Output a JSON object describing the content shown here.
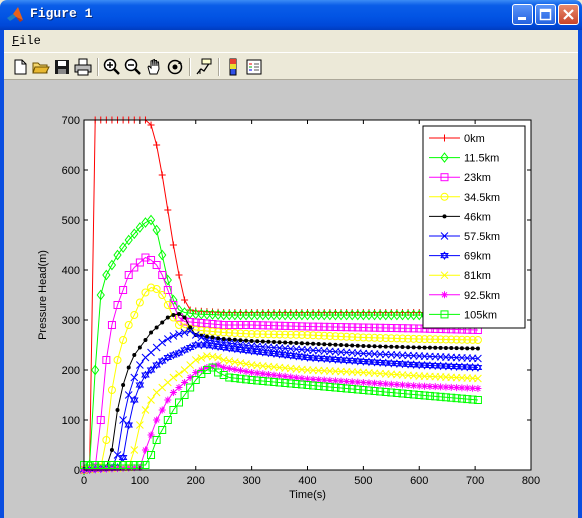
{
  "window": {
    "title": "Figure 1"
  },
  "menu": {
    "file_label": "File",
    "file_accel": "F",
    "file_rest": "ile"
  },
  "toolbar": {
    "buttons": [
      "new-figure",
      "open-file",
      "save",
      "print",
      "zoom-in",
      "zoom-out",
      "pan",
      "rotate-3d",
      "data-cursor",
      "colorbar",
      "legend"
    ]
  },
  "colors": {
    "titlebar": "#0254e4",
    "window_bg": "#ece9d8",
    "figure_bg": "#c8c8c8"
  },
  "chart_data": {
    "type": "line",
    "title": "",
    "xlabel": "Time(s)",
    "ylabel": "Pressure Head(m)",
    "xlim": [
      0,
      800
    ],
    "ylim": [
      0,
      700
    ],
    "xticks": [
      "0",
      "100",
      "200",
      "300",
      "400",
      "500",
      "600",
      "700",
      "800"
    ],
    "yticks": [
      "0",
      "100",
      "200",
      "300",
      "400",
      "500",
      "600",
      "700"
    ],
    "grid": false,
    "legend_position": "top-right",
    "series": [
      {
        "name": "0km",
        "color": "#ff0000",
        "marker": "+",
        "points": [
          [
            0,
            0
          ],
          [
            10,
            5
          ],
          [
            20,
            700
          ],
          [
            40,
            700
          ],
          [
            60,
            700
          ],
          [
            80,
            700
          ],
          [
            100,
            700
          ],
          [
            110,
            700
          ],
          [
            120,
            690
          ],
          [
            130,
            650
          ],
          [
            140,
            590
          ],
          [
            150,
            520
          ],
          [
            160,
            450
          ],
          [
            170,
            390
          ],
          [
            180,
            340
          ],
          [
            190,
            320
          ],
          [
            200,
            318
          ],
          [
            250,
            315
          ],
          [
            300,
            315
          ],
          [
            400,
            315
          ],
          [
            500,
            315
          ],
          [
            600,
            315
          ],
          [
            705,
            315
          ]
        ]
      },
      {
        "name": "11.5km",
        "color": "#00ff00",
        "marker": "diamond",
        "points": [
          [
            0,
            0
          ],
          [
            10,
            10
          ],
          [
            20,
            200
          ],
          [
            30,
            350
          ],
          [
            40,
            390
          ],
          [
            60,
            430
          ],
          [
            80,
            460
          ],
          [
            100,
            485
          ],
          [
            110,
            495
          ],
          [
            120,
            500
          ],
          [
            130,
            480
          ],
          [
            140,
            430
          ],
          [
            150,
            380
          ],
          [
            160,
            340
          ],
          [
            170,
            320
          ],
          [
            180,
            315
          ],
          [
            200,
            312
          ],
          [
            250,
            310
          ],
          [
            300,
            310
          ],
          [
            400,
            310
          ],
          [
            500,
            310
          ],
          [
            600,
            310
          ],
          [
            705,
            310
          ]
        ]
      },
      {
        "name": "23km",
        "color": "#ff00ff",
        "marker": "square",
        "points": [
          [
            0,
            0
          ],
          [
            20,
            5
          ],
          [
            30,
            100
          ],
          [
            40,
            220
          ],
          [
            50,
            290
          ],
          [
            60,
            330
          ],
          [
            70,
            360
          ],
          [
            80,
            390
          ],
          [
            90,
            405
          ],
          [
            100,
            415
          ],
          [
            110,
            425
          ],
          [
            120,
            420
          ],
          [
            130,
            410
          ],
          [
            140,
            390
          ],
          [
            150,
            360
          ],
          [
            160,
            330
          ],
          [
            170,
            305
          ],
          [
            180,
            297
          ],
          [
            200,
            295
          ],
          [
            250,
            290
          ],
          [
            300,
            290
          ],
          [
            400,
            287
          ],
          [
            500,
            285
          ],
          [
            600,
            283
          ],
          [
            705,
            280
          ]
        ]
      },
      {
        "name": "34.5km",
        "color": "#ffff00",
        "marker": "circle",
        "points": [
          [
            0,
            0
          ],
          [
            30,
            5
          ],
          [
            40,
            60
          ],
          [
            50,
            160
          ],
          [
            60,
            220
          ],
          [
            70,
            260
          ],
          [
            80,
            290
          ],
          [
            90,
            310
          ],
          [
            100,
            335
          ],
          [
            110,
            355
          ],
          [
            120,
            365
          ],
          [
            130,
            362
          ],
          [
            140,
            350
          ],
          [
            150,
            330
          ],
          [
            160,
            305
          ],
          [
            170,
            290
          ],
          [
            180,
            285
          ],
          [
            200,
            280
          ],
          [
            250,
            275
          ],
          [
            300,
            272
          ],
          [
            400,
            270
          ],
          [
            500,
            265
          ],
          [
            600,
            262
          ],
          [
            705,
            260
          ]
        ]
      },
      {
        "name": "46km",
        "color": "#000000",
        "marker": "dot",
        "points": [
          [
            0,
            0
          ],
          [
            40,
            5
          ],
          [
            50,
            40
          ],
          [
            60,
            120
          ],
          [
            70,
            170
          ],
          [
            80,
            205
          ],
          [
            90,
            230
          ],
          [
            100,
            245
          ],
          [
            110,
            260
          ],
          [
            120,
            275
          ],
          [
            130,
            285
          ],
          [
            140,
            295
          ],
          [
            150,
            305
          ],
          [
            160,
            310
          ],
          [
            170,
            312
          ],
          [
            180,
            305
          ],
          [
            190,
            285
          ],
          [
            200,
            270
          ],
          [
            250,
            262
          ],
          [
            300,
            258
          ],
          [
            400,
            253
          ],
          [
            500,
            248
          ],
          [
            600,
            245
          ],
          [
            705,
            243
          ]
        ]
      },
      {
        "name": "57.5km",
        "color": "#0000ff",
        "marker": "x",
        "points": [
          [
            0,
            0
          ],
          [
            50,
            5
          ],
          [
            60,
            30
          ],
          [
            70,
            100
          ],
          [
            80,
            150
          ],
          [
            90,
            185
          ],
          [
            100,
            210
          ],
          [
            110,
            225
          ],
          [
            120,
            235
          ],
          [
            130,
            245
          ],
          [
            140,
            255
          ],
          [
            150,
            262
          ],
          [
            160,
            268
          ],
          [
            170,
            272
          ],
          [
            180,
            275
          ],
          [
            190,
            278
          ],
          [
            200,
            270
          ],
          [
            220,
            260
          ],
          [
            250,
            255
          ],
          [
            300,
            248
          ],
          [
            400,
            240
          ],
          [
            500,
            233
          ],
          [
            600,
            228
          ],
          [
            705,
            223
          ]
        ]
      },
      {
        "name": "69km",
        "color": "#0000ff",
        "marker": "hexagram",
        "points": [
          [
            0,
            0
          ],
          [
            60,
            5
          ],
          [
            70,
            25
          ],
          [
            80,
            90
          ],
          [
            90,
            140
          ],
          [
            100,
            170
          ],
          [
            110,
            190
          ],
          [
            120,
            200
          ],
          [
            130,
            210
          ],
          [
            140,
            218
          ],
          [
            150,
            225
          ],
          [
            160,
            230
          ],
          [
            170,
            234
          ],
          [
            180,
            240
          ],
          [
            190,
            245
          ],
          [
            200,
            250
          ],
          [
            220,
            250
          ],
          [
            250,
            245
          ],
          [
            300,
            238
          ],
          [
            400,
            225
          ],
          [
            500,
            217
          ],
          [
            600,
            210
          ],
          [
            705,
            205
          ]
        ]
      },
      {
        "name": "81km",
        "color": "#ffff00",
        "marker": "x",
        "points": [
          [
            0,
            0
          ],
          [
            80,
            5
          ],
          [
            90,
            40
          ],
          [
            100,
            90
          ],
          [
            110,
            120
          ],
          [
            120,
            140
          ],
          [
            130,
            155
          ],
          [
            140,
            165
          ],
          [
            150,
            175
          ],
          [
            160,
            185
          ],
          [
            170,
            192
          ],
          [
            180,
            200
          ],
          [
            190,
            210
          ],
          [
            200,
            220
          ],
          [
            220,
            228
          ],
          [
            240,
            225
          ],
          [
            250,
            220
          ],
          [
            300,
            210
          ],
          [
            400,
            200
          ],
          [
            500,
            195
          ],
          [
            600,
            188
          ],
          [
            705,
            183
          ]
        ]
      },
      {
        "name": "92.5km",
        "color": "#ff00ff",
        "marker": "star",
        "points": [
          [
            0,
            0
          ],
          [
            100,
            5
          ],
          [
            110,
            40
          ],
          [
            120,
            70
          ],
          [
            130,
            100
          ],
          [
            140,
            120
          ],
          [
            150,
            140
          ],
          [
            160,
            155
          ],
          [
            170,
            165
          ],
          [
            180,
            175
          ],
          [
            190,
            185
          ],
          [
            200,
            195
          ],
          [
            220,
            205
          ],
          [
            240,
            210
          ],
          [
            250,
            205
          ],
          [
            300,
            195
          ],
          [
            400,
            182
          ],
          [
            500,
            175
          ],
          [
            600,
            168
          ],
          [
            705,
            163
          ]
        ]
      },
      {
        "name": "105km",
        "color": "#00ff00",
        "marker": "square",
        "points": [
          [
            0,
            10
          ],
          [
            110,
            10
          ],
          [
            120,
            30
          ],
          [
            130,
            60
          ],
          [
            140,
            80
          ],
          [
            150,
            100
          ],
          [
            160,
            120
          ],
          [
            170,
            135
          ],
          [
            180,
            150
          ],
          [
            190,
            165
          ],
          [
            200,
            180
          ],
          [
            210,
            192
          ],
          [
            220,
            200
          ],
          [
            230,
            205
          ],
          [
            240,
            195
          ],
          [
            260,
            185
          ],
          [
            300,
            180
          ],
          [
            400,
            170
          ],
          [
            500,
            160
          ],
          [
            600,
            150
          ],
          [
            705,
            140
          ]
        ]
      }
    ]
  }
}
